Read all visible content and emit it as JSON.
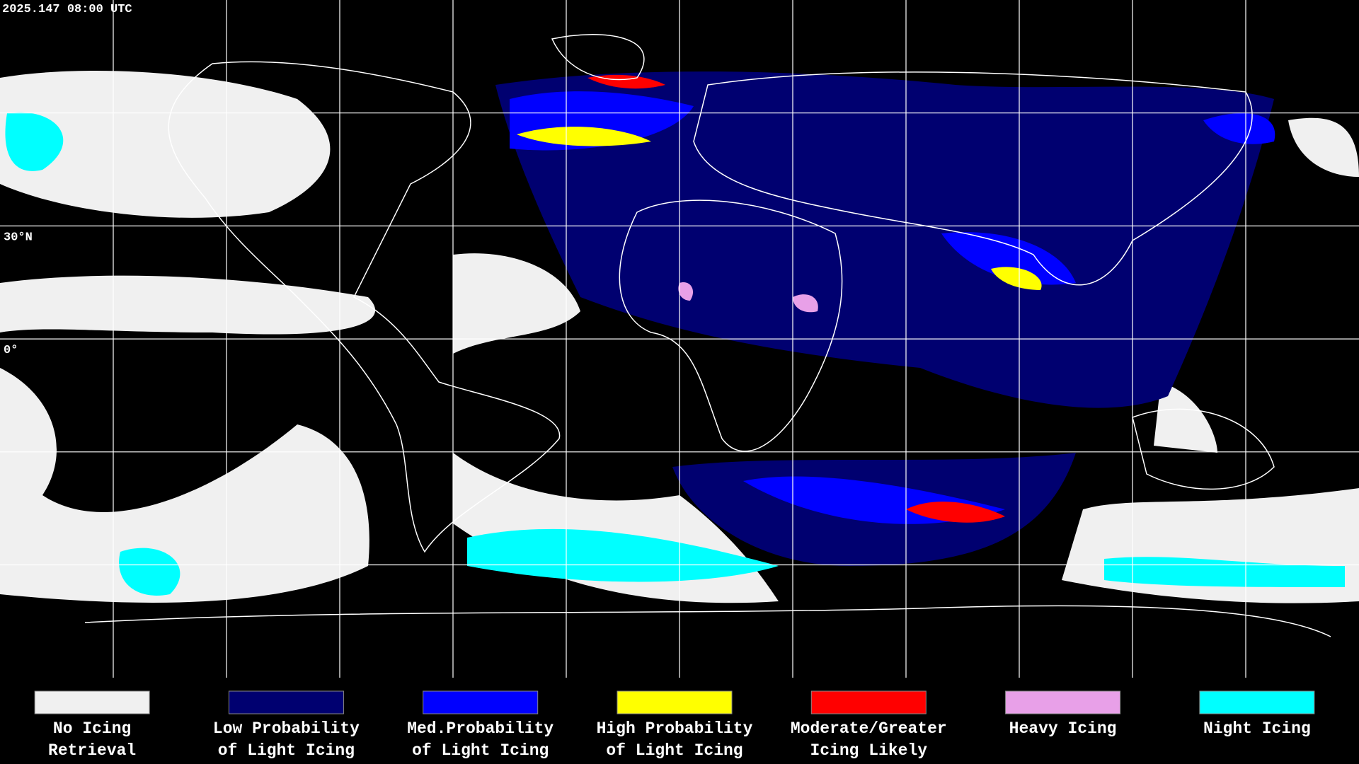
{
  "header": {
    "timestamp": "2025.147 08:00 UTC"
  },
  "map": {
    "lat_labels": [
      "30°N",
      "0°"
    ]
  },
  "legend": {
    "items": [
      {
        "label": [
          "No Icing",
          "Retrieval"
        ],
        "color": "#f0f0f0"
      },
      {
        "label": [
          "Low Probability",
          "of Light Icing"
        ],
        "color": "#000070"
      },
      {
        "label": [
          "Med.Probability",
          "of Light Icing"
        ],
        "color": "#0000ff"
      },
      {
        "label": [
          "High Probability",
          "of Light Icing"
        ],
        "color": "#ffff00"
      },
      {
        "label": [
          "Moderate/Greater",
          "Icing Likely"
        ],
        "color": "#ff0000"
      },
      {
        "label": [
          "Heavy Icing"
        ],
        "color": "#e8a0e8"
      },
      {
        "label": [
          "Night Icing"
        ],
        "color": "#00ffff"
      }
    ]
  }
}
